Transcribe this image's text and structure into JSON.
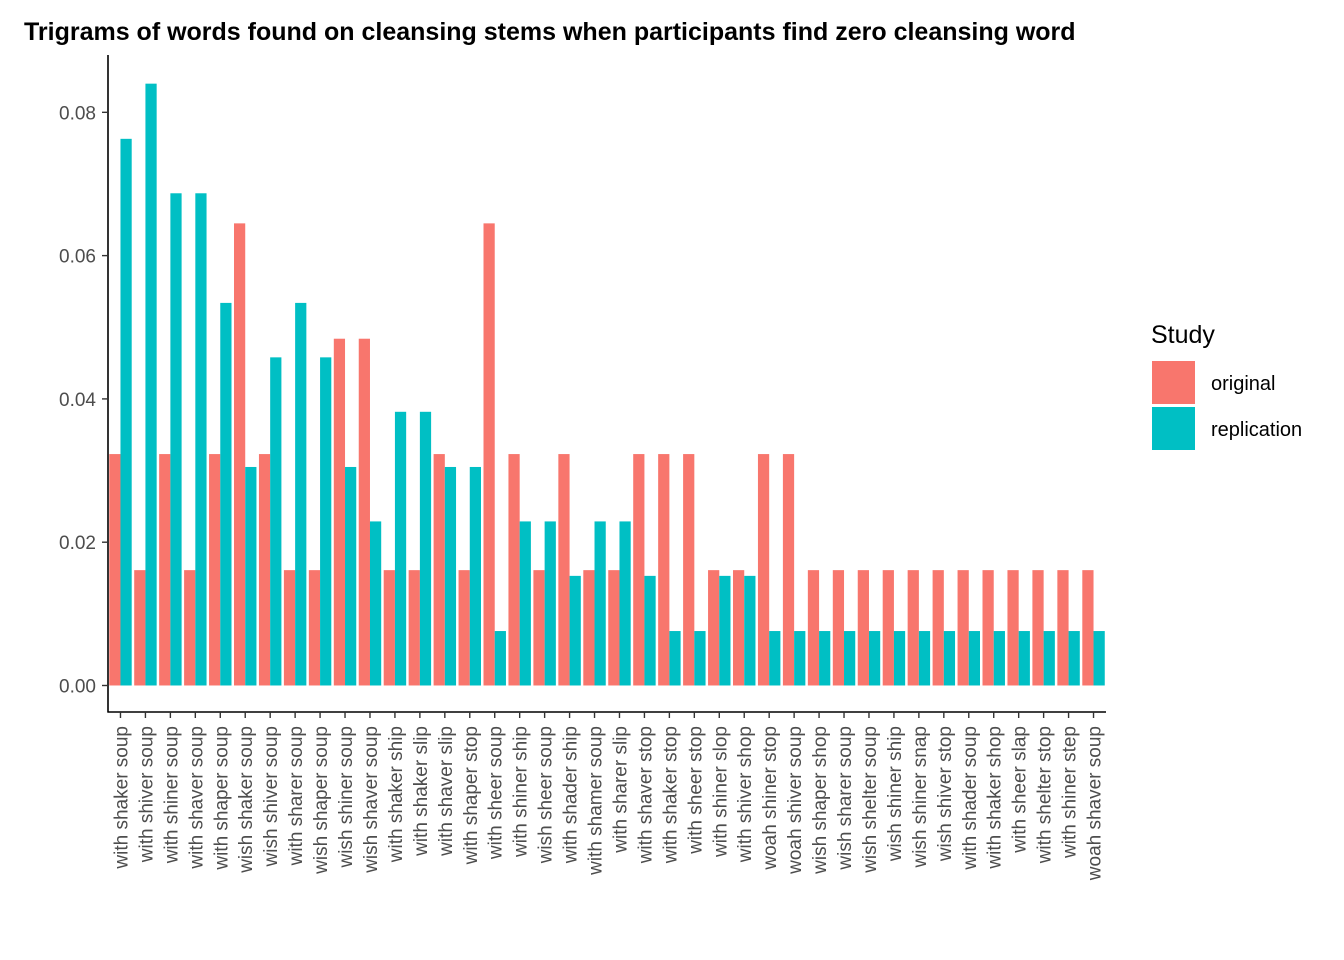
{
  "chart_data": {
    "type": "bar",
    "title": "Trigrams of words found on cleansing stems when participants find zero cleansing word",
    "xlabel": "",
    "ylabel": "",
    "ylim": [
      -0.0037,
      0.088
    ],
    "yticks": [
      0.0,
      0.02,
      0.04,
      0.06,
      0.08
    ],
    "ytick_labels": [
      "0.00",
      "0.02",
      "0.04",
      "0.06",
      "0.08"
    ],
    "grid": false,
    "legend": {
      "title": "Study",
      "position": "right"
    },
    "categories": [
      "with shaker soup",
      "with shiver soup",
      "with shiner soup",
      "with shaver soup",
      "with shaper soup",
      "wish shaker soup",
      "wish shiver soup",
      "with sharer soup",
      "wish shaper soup",
      "wish shiner soup",
      "wish shaver soup",
      "with shaker ship",
      "with shaker slip",
      "with shaver slip",
      "with shaper stop",
      "with sheer soup",
      "with shiner ship",
      "wish sheer soup",
      "with shader ship",
      "with shamer soup",
      "with sharer slip",
      "with shaver stop",
      "with shaker stop",
      "with sheer stop",
      "with shiner slop",
      "with shiver shop",
      "woah shiner stop",
      "woah shiver soup",
      "wish shaper shop",
      "wish sharer soup",
      "wish shelter soup",
      "wish shiner ship",
      "wish shiner snap",
      "wish shiver stop",
      "with shader soup",
      "with shaker shop",
      "with sheer slap",
      "with shelter stop",
      "with shiner step",
      "woah shaver soup"
    ],
    "series": [
      {
        "name": "original",
        "color": "#F8766D",
        "values": [
          0.0323,
          0.0161,
          0.0323,
          0.0161,
          0.0323,
          0.0645,
          0.0323,
          0.0161,
          0.0161,
          0.0484,
          0.0484,
          0.0161,
          0.0161,
          0.0323,
          0.0161,
          0.0645,
          0.0323,
          0.0161,
          0.0323,
          0.0161,
          0.0161,
          0.0323,
          0.0323,
          0.0323,
          0.0161,
          0.0161,
          0.0323,
          0.0323,
          0.0161,
          0.0161,
          0.0161,
          0.0161,
          0.0161,
          0.0161,
          0.0161,
          0.0161,
          0.0161,
          0.0161,
          0.0161,
          0.0161
        ]
      },
      {
        "name": "replication",
        "color": "#00BFC4",
        "values": [
          0.0763,
          0.084,
          0.0687,
          0.0687,
          0.0534,
          0.0305,
          0.0458,
          0.0534,
          0.0458,
          0.0305,
          0.0229,
          0.0382,
          0.0382,
          0.0305,
          0.0305,
          0.0076,
          0.0229,
          0.0229,
          0.0153,
          0.0229,
          0.0229,
          0.0153,
          0.0076,
          0.0076,
          0.0153,
          0.0153,
          0.0076,
          0.0076,
          0.0076,
          0.0076,
          0.0076,
          0.0076,
          0.0076,
          0.0076,
          0.0076,
          0.0076,
          0.0076,
          0.0076,
          0.0076,
          0.0076
        ]
      }
    ]
  }
}
